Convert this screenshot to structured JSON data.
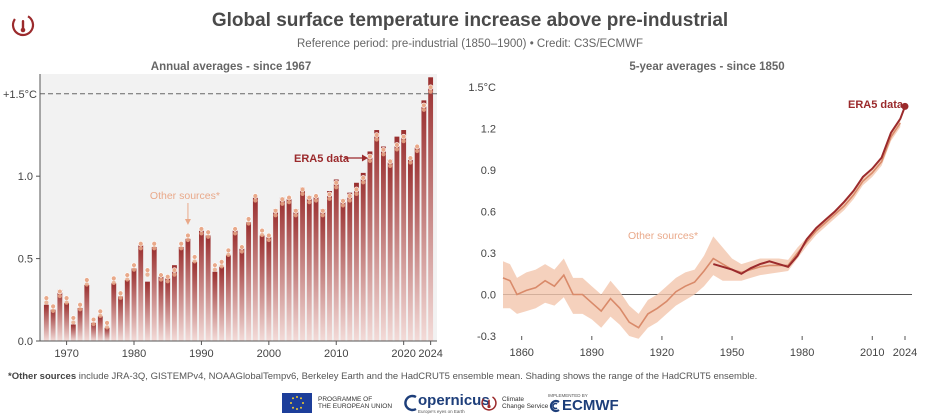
{
  "header": {
    "title": "Global surface temperature increase above pre-industrial",
    "subtitle": "Reference period: pre-industrial (1850–1900) • Credit: C3S/ECMWF"
  },
  "chart_data": [
    {
      "type": "bar",
      "title": "Annual averages - since 1967",
      "series_label": "ERA5 data",
      "other_label": "Other sources*",
      "threshold_label": "+1.5°C",
      "threshold": 1.5,
      "ylim": [
        0,
        1.62
      ],
      "yticks": [
        0.0,
        0.5,
        1.0
      ],
      "ytick_labels": [
        "0.0",
        "0.5",
        "1.0"
      ],
      "xtick_years": [
        1970,
        1980,
        1990,
        2000,
        2010,
        2020,
        2024
      ],
      "x": [
        1967,
        1968,
        1969,
        1970,
        1971,
        1972,
        1973,
        1974,
        1975,
        1976,
        1977,
        1978,
        1979,
        1980,
        1981,
        1982,
        1983,
        1984,
        1985,
        1986,
        1987,
        1988,
        1989,
        1990,
        1991,
        1992,
        1993,
        1994,
        1995,
        1996,
        1997,
        1998,
        1999,
        2000,
        2001,
        2002,
        2003,
        2004,
        2005,
        2006,
        2007,
        2008,
        2009,
        2010,
        2011,
        2012,
        2013,
        2014,
        2015,
        2016,
        2017,
        2018,
        2019,
        2020,
        2021,
        2022,
        2023,
        2024
      ],
      "values": [
        0.22,
        0.19,
        0.31,
        0.23,
        0.1,
        0.2,
        0.34,
        0.11,
        0.15,
        0.08,
        0.35,
        0.27,
        0.37,
        0.44,
        0.58,
        0.36,
        0.57,
        0.39,
        0.38,
        0.46,
        0.57,
        0.62,
        0.48,
        0.67,
        0.64,
        0.42,
        0.45,
        0.52,
        0.67,
        0.56,
        0.72,
        0.87,
        0.64,
        0.63,
        0.8,
        0.87,
        0.86,
        0.8,
        0.93,
        0.88,
        0.88,
        0.8,
        0.91,
        0.98,
        0.86,
        0.9,
        0.96,
        1.02,
        1.15,
        1.28,
        1.18,
        1.1,
        1.24,
        1.28,
        1.1,
        1.18,
        1.46,
        1.6
      ],
      "other_sources": [
        0.26,
        0.21,
        0.3,
        0.26,
        0.14,
        0.22,
        0.37,
        0.13,
        0.18,
        0.11,
        0.38,
        0.29,
        0.4,
        0.46,
        0.59,
        0.43,
        0.59,
        0.4,
        0.39,
        0.43,
        0.59,
        0.64,
        0.51,
        0.68,
        0.66,
        0.46,
        0.48,
        0.55,
        0.68,
        0.57,
        0.74,
        0.88,
        0.67,
        0.64,
        0.79,
        0.86,
        0.87,
        0.79,
        0.92,
        0.87,
        0.88,
        0.79,
        0.89,
        0.96,
        0.85,
        0.88,
        0.92,
        0.99,
        1.12,
        1.25,
        1.16,
        1.09,
        1.19,
        1.24,
        1.11,
        1.18,
        1.43,
        1.54
      ]
    },
    {
      "type": "line",
      "title": "5-year averages - since 1850",
      "series_label": "ERA5 data",
      "other_label": "Other sources*",
      "ylim": [
        -0.3,
        1.5
      ],
      "yticks": [
        -0.3,
        0.0,
        0.3,
        0.6,
        0.9,
        1.2,
        1.5
      ],
      "ytick_labels": [
        "-0.3",
        "0.0",
        "0.3",
        "0.6",
        "0.9",
        "1.2",
        "1.5°C"
      ],
      "xlim": [
        1852,
        2027
      ],
      "xtick_years": [
        1860,
        1890,
        1920,
        1950,
        1980,
        2010,
        2024
      ],
      "other_sources_x": [
        1852,
        1855,
        1858,
        1862,
        1866,
        1870,
        1874,
        1878,
        1882,
        1886,
        1890,
        1894,
        1898,
        1902,
        1906,
        1910,
        1914,
        1918,
        1922,
        1926,
        1930,
        1934,
        1938,
        1942,
        1946,
        1950,
        1954,
        1958,
        1962,
        1966,
        1970,
        1974,
        1978,
        1982,
        1986,
        1990,
        1994,
        1998,
        2002,
        2006,
        2010,
        2014,
        2018,
        2022
      ],
      "other_sources_y": [
        0.12,
        0.1,
        0.0,
        0.03,
        0.05,
        0.1,
        0.06,
        0.14,
        0.0,
        0.0,
        -0.06,
        -0.12,
        -0.03,
        -0.1,
        -0.2,
        -0.24,
        -0.14,
        -0.1,
        -0.05,
        0.02,
        0.06,
        0.09,
        0.17,
        0.26,
        0.22,
        0.18,
        0.16,
        0.18,
        0.2,
        0.21,
        0.21,
        0.21,
        0.3,
        0.38,
        0.46,
        0.52,
        0.58,
        0.64,
        0.72,
        0.82,
        0.88,
        0.96,
        1.14,
        1.24
      ],
      "band_low": [
        -0.1,
        -0.1,
        -0.14,
        -0.12,
        -0.1,
        -0.06,
        -0.08,
        -0.02,
        -0.14,
        -0.14,
        -0.18,
        -0.24,
        -0.16,
        -0.22,
        -0.3,
        -0.32,
        -0.24,
        -0.2,
        -0.14,
        -0.08,
        -0.04,
        0.0,
        0.06,
        0.14,
        0.1,
        0.1,
        0.1,
        0.12,
        0.14,
        0.15,
        0.16,
        0.17,
        0.26,
        0.35,
        0.43,
        0.49,
        0.55,
        0.61,
        0.69,
        0.79,
        0.85,
        0.93,
        1.11,
        1.21
      ],
      "band_high": [
        0.24,
        0.22,
        0.12,
        0.16,
        0.18,
        0.22,
        0.18,
        0.26,
        0.12,
        0.12,
        0.06,
        0.0,
        0.1,
        0.02,
        -0.08,
        -0.14,
        -0.04,
        0.0,
        0.06,
        0.12,
        0.16,
        0.18,
        0.28,
        0.42,
        0.34,
        0.26,
        0.22,
        0.24,
        0.26,
        0.26,
        0.26,
        0.25,
        0.34,
        0.41,
        0.49,
        0.55,
        0.61,
        0.67,
        0.75,
        0.85,
        0.91,
        0.99,
        1.17,
        1.27
      ],
      "era5_x": [
        1942,
        1946,
        1950,
        1954,
        1958,
        1962,
        1966,
        1970,
        1974,
        1978,
        1982,
        1986,
        1990,
        1994,
        1998,
        2002,
        2006,
        2010,
        2014,
        2018,
        2022,
        2024
      ],
      "era5_y": [
        0.22,
        0.2,
        0.18,
        0.15,
        0.19,
        0.22,
        0.24,
        0.22,
        0.2,
        0.28,
        0.4,
        0.48,
        0.54,
        0.6,
        0.67,
        0.75,
        0.85,
        0.91,
        0.99,
        1.17,
        1.27,
        1.36
      ]
    }
  ],
  "footnote": {
    "bold": "*Other sources",
    "text": " include JRA-3Q, GISTEMPv4, NOAAGlobalTempv6, Berkeley Earth and the HadCRUT5 ensemble mean. Shading shows the range of the HadCRUT5 ensemble."
  },
  "footer_logos": {
    "eu_line1": "PROGRAMME OF",
    "eu_line2": "THE EUROPEAN UNION",
    "copernicus": "opernicus",
    "copernicus_tag": "Europe's eyes on Earth",
    "ccs_line1": "Climate",
    "ccs_line2": "Change Service",
    "implemented": "IMPLEMENTED BY",
    "ecmwf": "ECMWF"
  },
  "colors": {
    "era5": "#9b2a2c",
    "bar_top": "#9a2f2f",
    "bar_bottom": "#f3dbd8",
    "other": "#e9a98a",
    "band": "#f3c6ad",
    "axis": "#555555"
  }
}
